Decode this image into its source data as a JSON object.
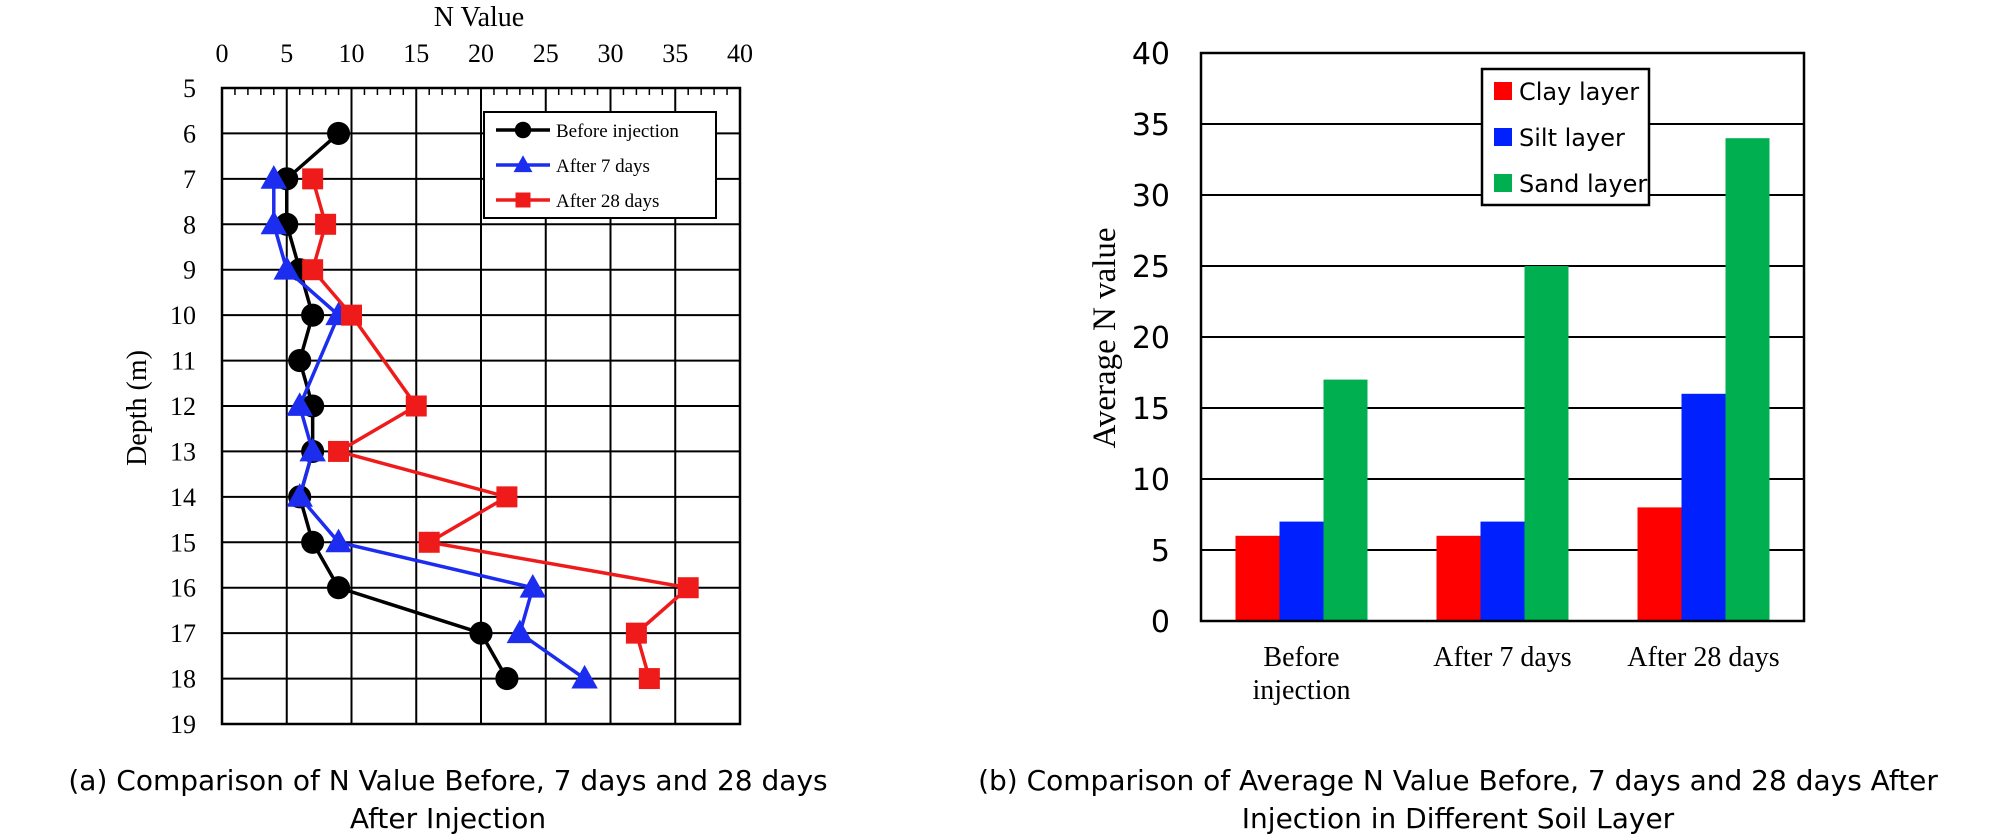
{
  "chart_data": [
    {
      "type": "line",
      "title": "",
      "xlabel": "N Value",
      "ylabel": "Depth (m)",
      "xlim": [
        0,
        40
      ],
      "ylim": [
        5,
        19
      ],
      "x_ticks": [
        0,
        5,
        10,
        15,
        20,
        25,
        30,
        35,
        40
      ],
      "y_ticks": [
        5,
        6,
        7,
        8,
        9,
        10,
        11,
        12,
        13,
        14,
        15,
        16,
        17,
        18,
        19
      ],
      "x_axis_position": "top",
      "y_inverted": true,
      "grid": true,
      "legend_position": "top-right",
      "caption": [
        "(a) Comparison of N Value Before, 7 days and 28 days",
        "After Injection"
      ],
      "series": [
        {
          "name": "Before injection",
          "color": "#000000",
          "marker": "circle",
          "points": [
            [
              9,
              6
            ],
            [
              5,
              7
            ],
            [
              5,
              8
            ],
            [
              6,
              9
            ],
            [
              7,
              10
            ],
            [
              6,
              11
            ],
            [
              7,
              12
            ],
            [
              7,
              13
            ],
            [
              6,
              14
            ],
            [
              7,
              15
            ],
            [
              9,
              16
            ],
            [
              20,
              17
            ],
            [
              22,
              18
            ]
          ]
        },
        {
          "name": "After 7 days",
          "color": "#1c2df0",
          "marker": "triangle",
          "points": [
            [
              4,
              7
            ],
            [
              4,
              8
            ],
            [
              5,
              9
            ],
            [
              9,
              10
            ],
            [
              6,
              12
            ],
            [
              7,
              13
            ],
            [
              6,
              14
            ],
            [
              9,
              15
            ],
            [
              24,
              16
            ],
            [
              23,
              17
            ],
            [
              28,
              18
            ]
          ]
        },
        {
          "name": "After 28 days",
          "color": "#ef1b1b",
          "marker": "square",
          "points": [
            [
              7,
              7
            ],
            [
              8,
              8
            ],
            [
              7,
              9
            ],
            [
              10,
              10
            ],
            [
              15,
              12
            ],
            [
              9,
              13
            ],
            [
              22,
              14
            ],
            [
              16,
              15
            ],
            [
              36,
              16
            ],
            [
              32,
              17
            ],
            [
              33,
              18
            ]
          ]
        }
      ]
    },
    {
      "type": "bar",
      "title": "",
      "xlabel": "",
      "ylabel": "Average N value",
      "ylim": [
        0,
        40
      ],
      "y_ticks": [
        0,
        5,
        10,
        15,
        20,
        25,
        30,
        35,
        40
      ],
      "grid": true,
      "legend_position": "top-center",
      "categories": [
        [
          "Before",
          "injection"
        ],
        [
          "After 7 days"
        ],
        [
          "After 28 days"
        ]
      ],
      "caption": [
        "(b) Comparison of Average N Value Before, 7 days and 28 days After",
        "Injection in Different Soil Layer"
      ],
      "series": [
        {
          "name": "Clay layer",
          "color": "#fe0000",
          "values": [
            6,
            6,
            8
          ]
        },
        {
          "name": "Silt layer",
          "color": "#0021fe",
          "values": [
            7,
            7,
            16
          ]
        },
        {
          "name": "Sand layer",
          "color": "#00b050",
          "values": [
            17,
            25,
            34
          ]
        }
      ]
    }
  ]
}
